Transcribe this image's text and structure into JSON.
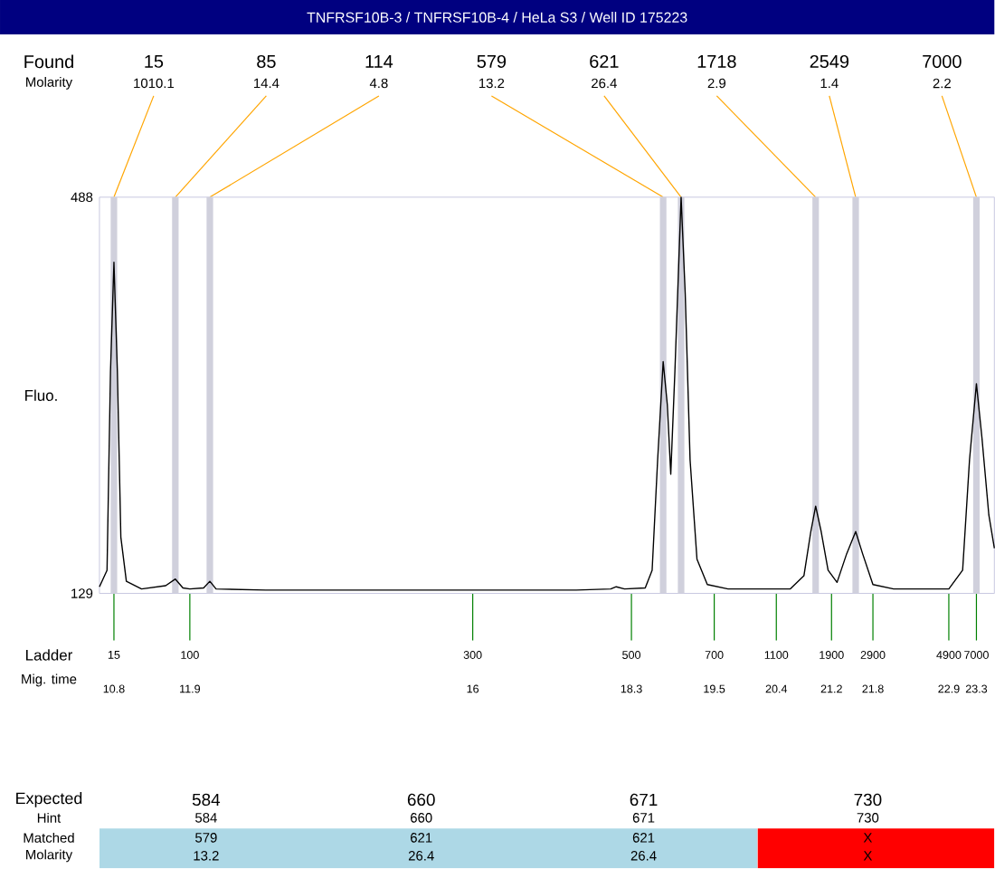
{
  "chart_data": {
    "type": "line",
    "title": "TNFRSF10B-3 / TNFRSF10B-4 / HeLa S3 / Well ID 175223",
    "ylabel": "Fluo.",
    "x": [
      10.59,
      10.7,
      10.75,
      10.8,
      10.85,
      10.9,
      10.98,
      11.2,
      11.55,
      11.69,
      11.8,
      11.9,
      12.1,
      12.19,
      12.28,
      13,
      15,
      17.5,
      18.0,
      18.08,
      18.2,
      18.5,
      18.6,
      18.68,
      18.76,
      18.82,
      18.87,
      18.93,
      19.02,
      19.08,
      19.15,
      19.25,
      19.4,
      19.7,
      20.6,
      20.8,
      20.9,
      20.97,
      21.05,
      21.15,
      21.28,
      21.42,
      21.55,
      21.65,
      21.8,
      22.1,
      22.9,
      23.1,
      23.2,
      23.3,
      23.38,
      23.48,
      23.56
    ],
    "values": [
      135,
      150,
      330,
      429,
      330,
      180,
      140,
      133,
      136,
      142,
      134,
      133,
      134,
      140,
      133,
      132,
      132,
      132,
      133,
      135,
      133,
      134,
      150,
      250,
      339,
      300,
      237,
      330,
      488,
      400,
      250,
      160,
      137,
      133,
      133,
      145,
      185,
      208,
      185,
      150,
      139,
      165,
      185,
      165,
      137,
      133,
      133,
      150,
      250,
      319,
      270,
      200,
      170
    ],
    "color": "#000000",
    "xlim": [
      10.59,
      23.56
    ],
    "ylim": [
      129,
      488
    ],
    "xticks": [
      10.8,
      11.9,
      16,
      18.3,
      19.5,
      20.4,
      21.2,
      21.8,
      22.9,
      23.3
    ],
    "yticks": [
      129,
      488
    ],
    "ref_lines": [
      {
        "axis": "x",
        "value": 10.8,
        "color": "#d0d0dc"
      },
      {
        "axis": "x",
        "value": 11.69,
        "color": "#d0d0dc"
      },
      {
        "axis": "x",
        "value": 12.19,
        "color": "#d0d0dc"
      },
      {
        "axis": "x",
        "value": 18.76,
        "color": "#d0d0dc"
      },
      {
        "axis": "x",
        "value": 19.02,
        "color": "#d0d0dc"
      },
      {
        "axis": "x",
        "value": 20.97,
        "color": "#d0d0dc"
      },
      {
        "axis": "x",
        "value": 21.55,
        "color": "#d0d0dc"
      },
      {
        "axis": "x",
        "value": 23.3,
        "color": "#d0d0dc"
      }
    ],
    "annotations": [
      "Found",
      "Molarity",
      "Ladder",
      "Mig. time",
      "Expected",
      "Hint",
      "Matched",
      "Molarity",
      "584",
      "660",
      "671",
      "730",
      "584",
      "660",
      "671",
      "730",
      "579",
      "621",
      "621",
      "X",
      "13.2",
      "26.4",
      "26.4",
      "X",
      "15",
      "85",
      "114",
      "579",
      "621",
      "1718",
      "2549",
      "7000",
      "1010.1",
      "14.4",
      "4.8",
      "13.2",
      "26.4",
      "2.9",
      "1.4",
      "2.2",
      "15",
      "100",
      "300",
      "500",
      "700",
      "1100",
      "1900",
      "2900",
      "4900",
      "7000"
    ]
  }
}
